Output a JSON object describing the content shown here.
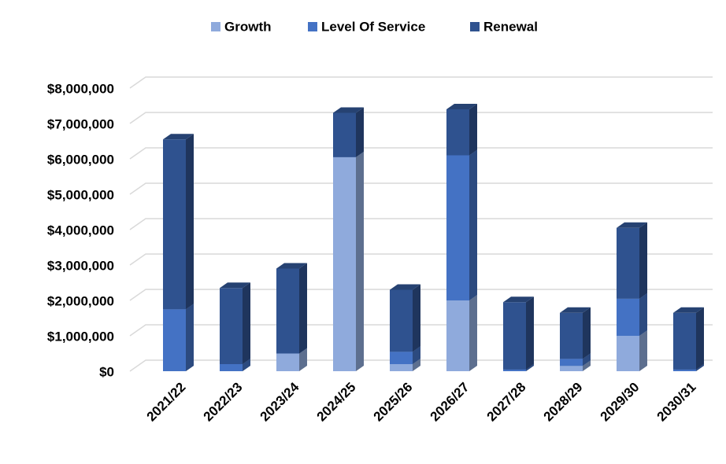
{
  "chart_data": {
    "type": "bar3d_stacked",
    "categories": [
      "2021/22",
      "2022/23",
      "2023/24",
      "2024/25",
      "2025/26",
      "2026/27",
      "2027/28",
      "2028/29",
      "2029/30",
      "2030/31"
    ],
    "series": [
      {
        "name": "Growth",
        "color": "#8faadc",
        "values": [
          0,
          0,
          500000,
          6050000,
          200000,
          2000000,
          0,
          150000,
          1000000,
          0
        ]
      },
      {
        "name": "Level Of Service",
        "color": "#4472c4",
        "values": [
          1750000,
          200000,
          0,
          0,
          350000,
          4100000,
          50000,
          200000,
          1050000,
          50000
        ]
      },
      {
        "name": "Renewal",
        "color": "#2f528f",
        "values": [
          4800000,
          2150000,
          2400000,
          1250000,
          1750000,
          1300000,
          1900000,
          1300000,
          2000000,
          1600000
        ]
      }
    ],
    "ylim": [
      0,
      8000000
    ],
    "yticks": [
      {
        "value": 0,
        "label": "$0"
      },
      {
        "value": 1000000,
        "label": "$1,000,000"
      },
      {
        "value": 2000000,
        "label": "$2,000,000"
      },
      {
        "value": 3000000,
        "label": "$3,000,000"
      },
      {
        "value": 4000000,
        "label": "$4,000,000"
      },
      {
        "value": 5000000,
        "label": "$5,000,000"
      },
      {
        "value": 6000000,
        "label": "$6,000,000"
      },
      {
        "value": 7000000,
        "label": "$7,000,000"
      },
      {
        "value": 8000000,
        "label": "$8,000,000"
      }
    ],
    "grid": true,
    "legend": "top"
  }
}
